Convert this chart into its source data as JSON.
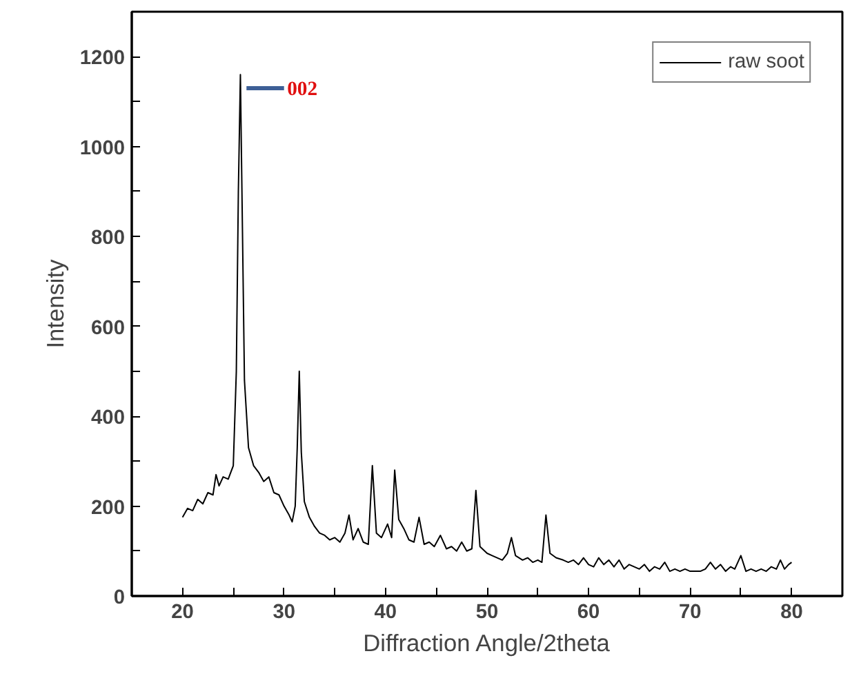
{
  "chart_data": {
    "type": "line",
    "xlabel": "Diffraction Angle/2theta",
    "ylabel": "Intensity",
    "xlim": [
      15,
      85
    ],
    "ylim": [
      0,
      1300
    ],
    "xticks": [
      20,
      {
        "value": 25,
        "label": null
      },
      30,
      {
        "value": 35,
        "label": null
      },
      40,
      {
        "value": 45,
        "label": null
      },
      50,
      {
        "value": 55,
        "label": null
      },
      60,
      {
        "value": 65,
        "label": null
      },
      70,
      {
        "value": 75,
        "label": null
      },
      80
    ],
    "yticks": [
      0,
      {
        "value": 100,
        "label": null
      },
      200,
      {
        "value": 300,
        "label": null
      },
      400,
      {
        "value": 500,
        "label": null
      },
      600,
      {
        "value": 700,
        "label": null
      },
      800,
      {
        "value": 900,
        "label": null
      },
      1000,
      {
        "value": 1100,
        "label": null
      },
      1200
    ],
    "legend": "top right",
    "marker": "none",
    "line_style": "solid",
    "annotations": [
      {
        "text": "002",
        "x": 25.7,
        "y": 1130
      }
    ],
    "series": [
      {
        "name": "raw soot",
        "color": "#000000",
        "x": [
          20,
          20.5,
          21,
          21.5,
          22,
          22.5,
          23,
          23.3,
          23.6,
          24,
          24.5,
          25,
          25.3,
          25.5,
          25.7,
          25.9,
          26.1,
          26.5,
          27,
          27.5,
          28,
          28.5,
          29,
          29.5,
          30,
          30.5,
          30.8,
          31.1,
          31.3,
          31.5,
          31.7,
          32,
          32.5,
          33,
          33.5,
          34,
          34.5,
          35,
          35.5,
          36,
          36.4,
          36.8,
          37.3,
          37.8,
          38.3,
          38.7,
          39.1,
          39.6,
          40.2,
          40.6,
          40.9,
          41.3,
          41.8,
          42.3,
          42.8,
          43.3,
          43.8,
          44.3,
          44.8,
          45.4,
          46,
          46.5,
          47,
          47.5,
          48,
          48.5,
          48.9,
          49.3,
          50,
          50.5,
          51,
          51.5,
          52,
          52.4,
          52.8,
          53.5,
          54,
          54.5,
          55,
          55.4,
          55.8,
          56.2,
          56.8,
          57.5,
          58,
          58.5,
          59,
          59.5,
          60,
          60.5,
          61,
          61.5,
          62,
          62.5,
          63,
          63.5,
          64,
          64.5,
          65,
          65.5,
          66,
          66.5,
          67,
          67.5,
          68,
          68.5,
          69,
          69.5,
          70,
          70.5,
          71,
          71.5,
          72,
          72.5,
          73,
          73.5,
          74,
          74.4,
          75,
          75.5,
          76,
          76.5,
          77,
          77.5,
          78,
          78.5,
          78.9,
          79.3,
          79.7,
          80
        ],
        "values": [
          175,
          195,
          190,
          215,
          205,
          230,
          225,
          270,
          245,
          265,
          260,
          290,
          500,
          900,
          1160,
          820,
          480,
          330,
          290,
          275,
          255,
          265,
          230,
          225,
          200,
          180,
          165,
          200,
          330,
          500,
          320,
          210,
          175,
          155,
          140,
          135,
          125,
          130,
          120,
          140,
          180,
          125,
          150,
          120,
          115,
          290,
          140,
          130,
          160,
          130,
          280,
          170,
          150,
          125,
          120,
          175,
          115,
          120,
          110,
          135,
          105,
          110,
          100,
          120,
          100,
          105,
          235,
          110,
          95,
          90,
          85,
          80,
          95,
          130,
          90,
          80,
          85,
          75,
          80,
          75,
          180,
          95,
          85,
          80,
          75,
          80,
          70,
          85,
          70,
          65,
          85,
          70,
          80,
          65,
          80,
          60,
          70,
          65,
          60,
          70,
          55,
          65,
          60,
          75,
          55,
          60,
          55,
          60,
          55,
          55,
          55,
          60,
          75,
          60,
          70,
          55,
          65,
          60,
          90,
          55,
          60,
          55,
          60,
          55,
          65,
          60,
          80,
          60,
          70,
          75
        ]
      }
    ]
  }
}
